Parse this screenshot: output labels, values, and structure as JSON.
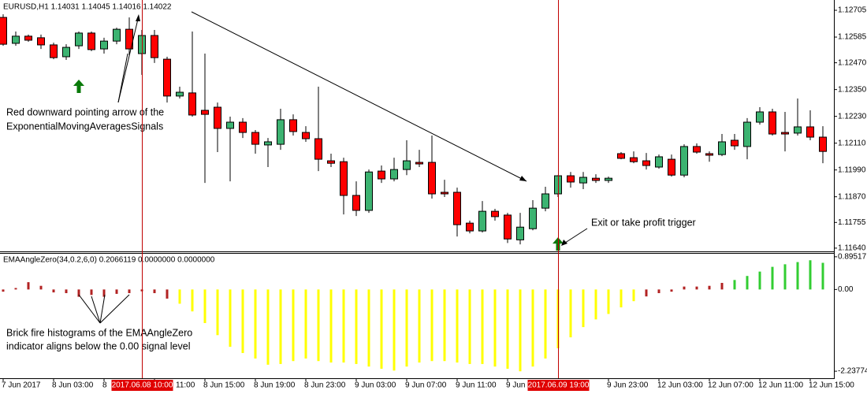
{
  "chart_data": [
    {
      "type": "candlestick",
      "title": "EURUSD,H1  1.14031 1.14045 1.14016 1.14022",
      "categories": [
        "7 Jun 2017",
        null,
        null,
        null,
        "8 Jun 03:00",
        null,
        null,
        null,
        "8",
        null,
        null,
        null,
        "11:00",
        null,
        null,
        null,
        "8 Jun 15:00",
        null,
        null,
        null,
        "8 Jun 19:00",
        null,
        null,
        null,
        "8 Jun 23:00",
        null,
        null,
        null,
        "9 Jun 03:00",
        null,
        null,
        null,
        "9 Jun 07:00",
        null,
        null,
        null,
        "9 Jun 11:00",
        null,
        null,
        null,
        "9 Jun",
        null,
        null,
        null,
        null,
        null,
        null,
        null,
        "9 Jun 23:00",
        null,
        null,
        null,
        "12 Jun 03:00",
        null,
        null,
        null,
        "12 Jun 07:00",
        null,
        null,
        null,
        "12 Jun 11:00",
        null,
        null,
        null,
        "12 Jun 15:00",
        null
      ],
      "open": [
        1.12673,
        1.12557,
        1.12589,
        1.12582,
        1.1255,
        1.12497,
        1.12546,
        1.12603,
        1.12532,
        1.12567,
        1.1262,
        1.12511,
        1.12592,
        1.12486,
        1.12321,
        1.12335,
        1.12257,
        1.12271,
        1.12176,
        1.12204,
        1.12158,
        1.12102,
        1.12105,
        1.12215,
        1.12158,
        1.1213,
        1.12031,
        1.12027,
        1.11876,
        1.11809,
        1.11985,
        1.1195,
        1.11992,
        1.12024,
        1.12024,
        1.1189,
        1.1189,
        1.11752,
        1.11717,
        1.11805,
        1.11788,
        1.11677,
        1.11727,
        1.11819,
        1.11883,
        1.11964,
        1.11932,
        1.11953,
        1.11943,
        1.12063,
        1.12045,
        1.12031,
        1.12003,
        1.12038,
        1.11967,
        1.12095,
        1.12063,
        1.12059,
        1.12123,
        1.12095,
        1.12204,
        1.1225,
        1.12158,
        1.12155,
        1.12183,
        1.12137
      ],
      "high": [
        1.12687,
        1.1261,
        1.12596,
        1.12596,
        1.1256,
        1.12553,
        1.1261,
        1.1261,
        1.12582,
        1.12627,
        1.12673,
        1.12617,
        1.12617,
        1.12497,
        1.12363,
        1.1261,
        1.12511,
        1.12292,
        1.12229,
        1.12222,
        1.12169,
        1.12133,
        1.12264,
        1.12239,
        1.12186,
        1.12363,
        1.12063,
        1.12045,
        1.11939,
        1.11992,
        1.1201,
        1.12045,
        1.12123,
        1.1208,
        1.12144,
        1.11946,
        1.11911,
        1.11763,
        1.11851,
        1.11816,
        1.11798,
        1.11798,
        1.11855,
        1.11915,
        1.11967,
        1.11981,
        1.11981,
        1.11971,
        1.1196,
        1.1207,
        1.12073,
        1.12066,
        1.12059,
        1.12059,
        1.12105,
        1.12109,
        1.12073,
        1.12151,
        1.12151,
        1.12222,
        1.12271,
        1.12264,
        1.1225,
        1.1231,
        1.12257,
        1.12186
      ],
      "low": [
        1.12546,
        1.12546,
        1.12564,
        1.12532,
        1.12486,
        1.12483,
        1.12532,
        1.12522,
        1.12511,
        1.12553,
        1.12504,
        1.12416,
        1.12469,
        1.12292,
        1.1231,
        1.12229,
        1.11932,
        1.1207,
        1.11939,
        1.12133,
        1.12063,
        1.12003,
        1.1208,
        1.12144,
        1.12116,
        1.11985,
        1.12003,
        1.11791,
        1.11784,
        1.11798,
        1.11932,
        1.11939,
        1.11967,
        1.12003,
        1.11862,
        1.11869,
        1.11692,
        1.11706,
        1.1171,
        1.11763,
        1.11663,
        1.11657,
        1.1172,
        1.11805,
        1.11869,
        1.11911,
        1.11904,
        1.11932,
        1.11932,
        1.12038,
        1.1202,
        1.11992,
        1.11996,
        1.1196,
        1.11957,
        1.12063,
        1.12027,
        1.12052,
        1.1208,
        1.12038,
        1.12193,
        1.12144,
        1.12073,
        1.12144,
        1.12123,
        1.1202
      ],
      "close": [
        1.12553,
        1.12589,
        1.12571,
        1.1255,
        1.12493,
        1.12539,
        1.12603,
        1.12529,
        1.12567,
        1.1262,
        1.12532,
        1.12592,
        1.12493,
        1.12321,
        1.12338,
        1.12236,
        1.12239,
        1.12176,
        1.12204,
        1.12158,
        1.12105,
        1.12116,
        1.12215,
        1.12162,
        1.1213,
        1.12038,
        1.1202,
        1.11876,
        1.11809,
        1.11981,
        1.1195,
        1.11992,
        1.12031,
        1.12017,
        1.11883,
        1.11883,
        1.11745,
        1.11717,
        1.11805,
        1.11781,
        1.11681,
        1.11734,
        1.11819,
        1.11883,
        1.11964,
        1.11936,
        1.11957,
        1.11943,
        1.11953,
        1.12042,
        1.12027,
        1.1201,
        1.12049,
        1.11967,
        1.12095,
        1.1207,
        1.12056,
        1.12116,
        1.12098,
        1.12204,
        1.1225,
        1.12151,
        1.12151,
        1.12183,
        1.12137,
        1.12073
      ],
      "up_color": "#3cb371",
      "down_color": "#ff0000",
      "ylim": [
        1.11629,
        1.12751
      ],
      "yticks": [
        1.12705,
        1.12585,
        {
          "value": 1.1247,
          "label": "1.12470"
        },
        {
          "value": 1.1235,
          "label": "1.12350"
        },
        {
          "value": 1.1223,
          "label": "1.12230"
        },
        {
          "value": 1.1211,
          "label": "1.12110"
        },
        {
          "value": 1.1199,
          "label": "1.11990"
        },
        {
          "value": 1.1187,
          "label": "1.11870"
        },
        1.11755,
        {
          "value": 1.1164,
          "label": "1.11640"
        }
      ],
      "markers": [
        {
          "index": 11,
          "label": "2017.06.08 10:00"
        },
        {
          "index": 44,
          "label": "2017.06.09 19:00"
        }
      ],
      "up_arrows": [
        {
          "index": 6,
          "price": 1.12363,
          "color": "#0a7a0a"
        },
        {
          "index": 44,
          "price": 1.11657,
          "color": "#0a7a0a"
        }
      ],
      "annotations": [
        {
          "lines": [
            "Red downward pointing arrow of the",
            "ExponentialMovingAveragesSignals"
          ]
        },
        {
          "lines": [
            "Exit or take profit trigger"
          ]
        }
      ]
    },
    {
      "type": "bar",
      "title": "EMAAngleZero(34,0.2,6,0) 0.2066119 0.0000000 0.0000000",
      "series": [
        {
          "color": "#b22222",
          "values": [
            -0.06,
            0.04,
            0.2,
            0.1,
            -0.08,
            -0.1,
            -0.2,
            -0.15,
            -0.2,
            -0.12,
            -0.1,
            -0.05,
            -0.1,
            -0.25,
            null,
            null,
            null,
            null,
            null,
            null,
            null,
            null,
            null,
            null,
            null,
            null,
            null,
            null,
            null,
            null,
            null,
            null,
            null,
            null,
            null,
            null,
            null,
            null,
            null,
            null,
            null,
            null,
            null,
            null,
            null,
            null,
            null,
            null,
            null,
            null,
            null,
            -0.19,
            -0.1,
            -0.06,
            0.08,
            0.08,
            0.1,
            0.18,
            null,
            null,
            null,
            null,
            null,
            null,
            null,
            null
          ]
        },
        {
          "color": "#ffff00",
          "values": [
            null,
            null,
            null,
            null,
            null,
            null,
            null,
            null,
            null,
            null,
            null,
            null,
            null,
            null,
            -0.39,
            -0.6,
            -0.92,
            -1.25,
            -1.57,
            -1.74,
            -1.89,
            -2.06,
            -2.04,
            -1.96,
            -1.89,
            -1.96,
            -2.0,
            -2.0,
            -2.04,
            -2.11,
            -2.17,
            -2.22,
            -2.11,
            -2.0,
            -1.96,
            -1.96,
            -2.0,
            -2.04,
            -2.04,
            -2.11,
            -2.17,
            -2.24,
            -2.11,
            -1.89,
            -1.61,
            -1.31,
            -1.03,
            -0.82,
            -0.67,
            -0.49,
            -0.32,
            null,
            null,
            null,
            null,
            null,
            null,
            null,
            null,
            null,
            null,
            null,
            null,
            null,
            null,
            null
          ]
        },
        {
          "color": "#32cd32",
          "values": [
            null,
            null,
            null,
            null,
            null,
            null,
            null,
            null,
            null,
            null,
            null,
            null,
            null,
            null,
            null,
            null,
            null,
            null,
            null,
            null,
            null,
            null,
            null,
            null,
            null,
            null,
            null,
            null,
            null,
            null,
            null,
            null,
            null,
            null,
            null,
            null,
            null,
            null,
            null,
            null,
            null,
            null,
            null,
            null,
            null,
            null,
            null,
            null,
            null,
            null,
            null,
            null,
            null,
            null,
            null,
            null,
            null,
            null,
            0.26,
            0.37,
            0.49,
            0.62,
            0.69,
            0.75,
            0.8,
            0.73
          ]
        }
      ],
      "ylim": [
        -2.43,
        1.0
      ],
      "yticks": [
        0.89517,
        {
          "value": 0,
          "label": "0.00"
        },
        {
          "value": -2.23774,
          "label": "-2.237740"
        }
      ],
      "annotations": [
        {
          "lines": [
            "Brick fire histograms of the EMAAngleZero",
            "indicator aligns below the 0.00 signal level"
          ]
        }
      ]
    }
  ]
}
